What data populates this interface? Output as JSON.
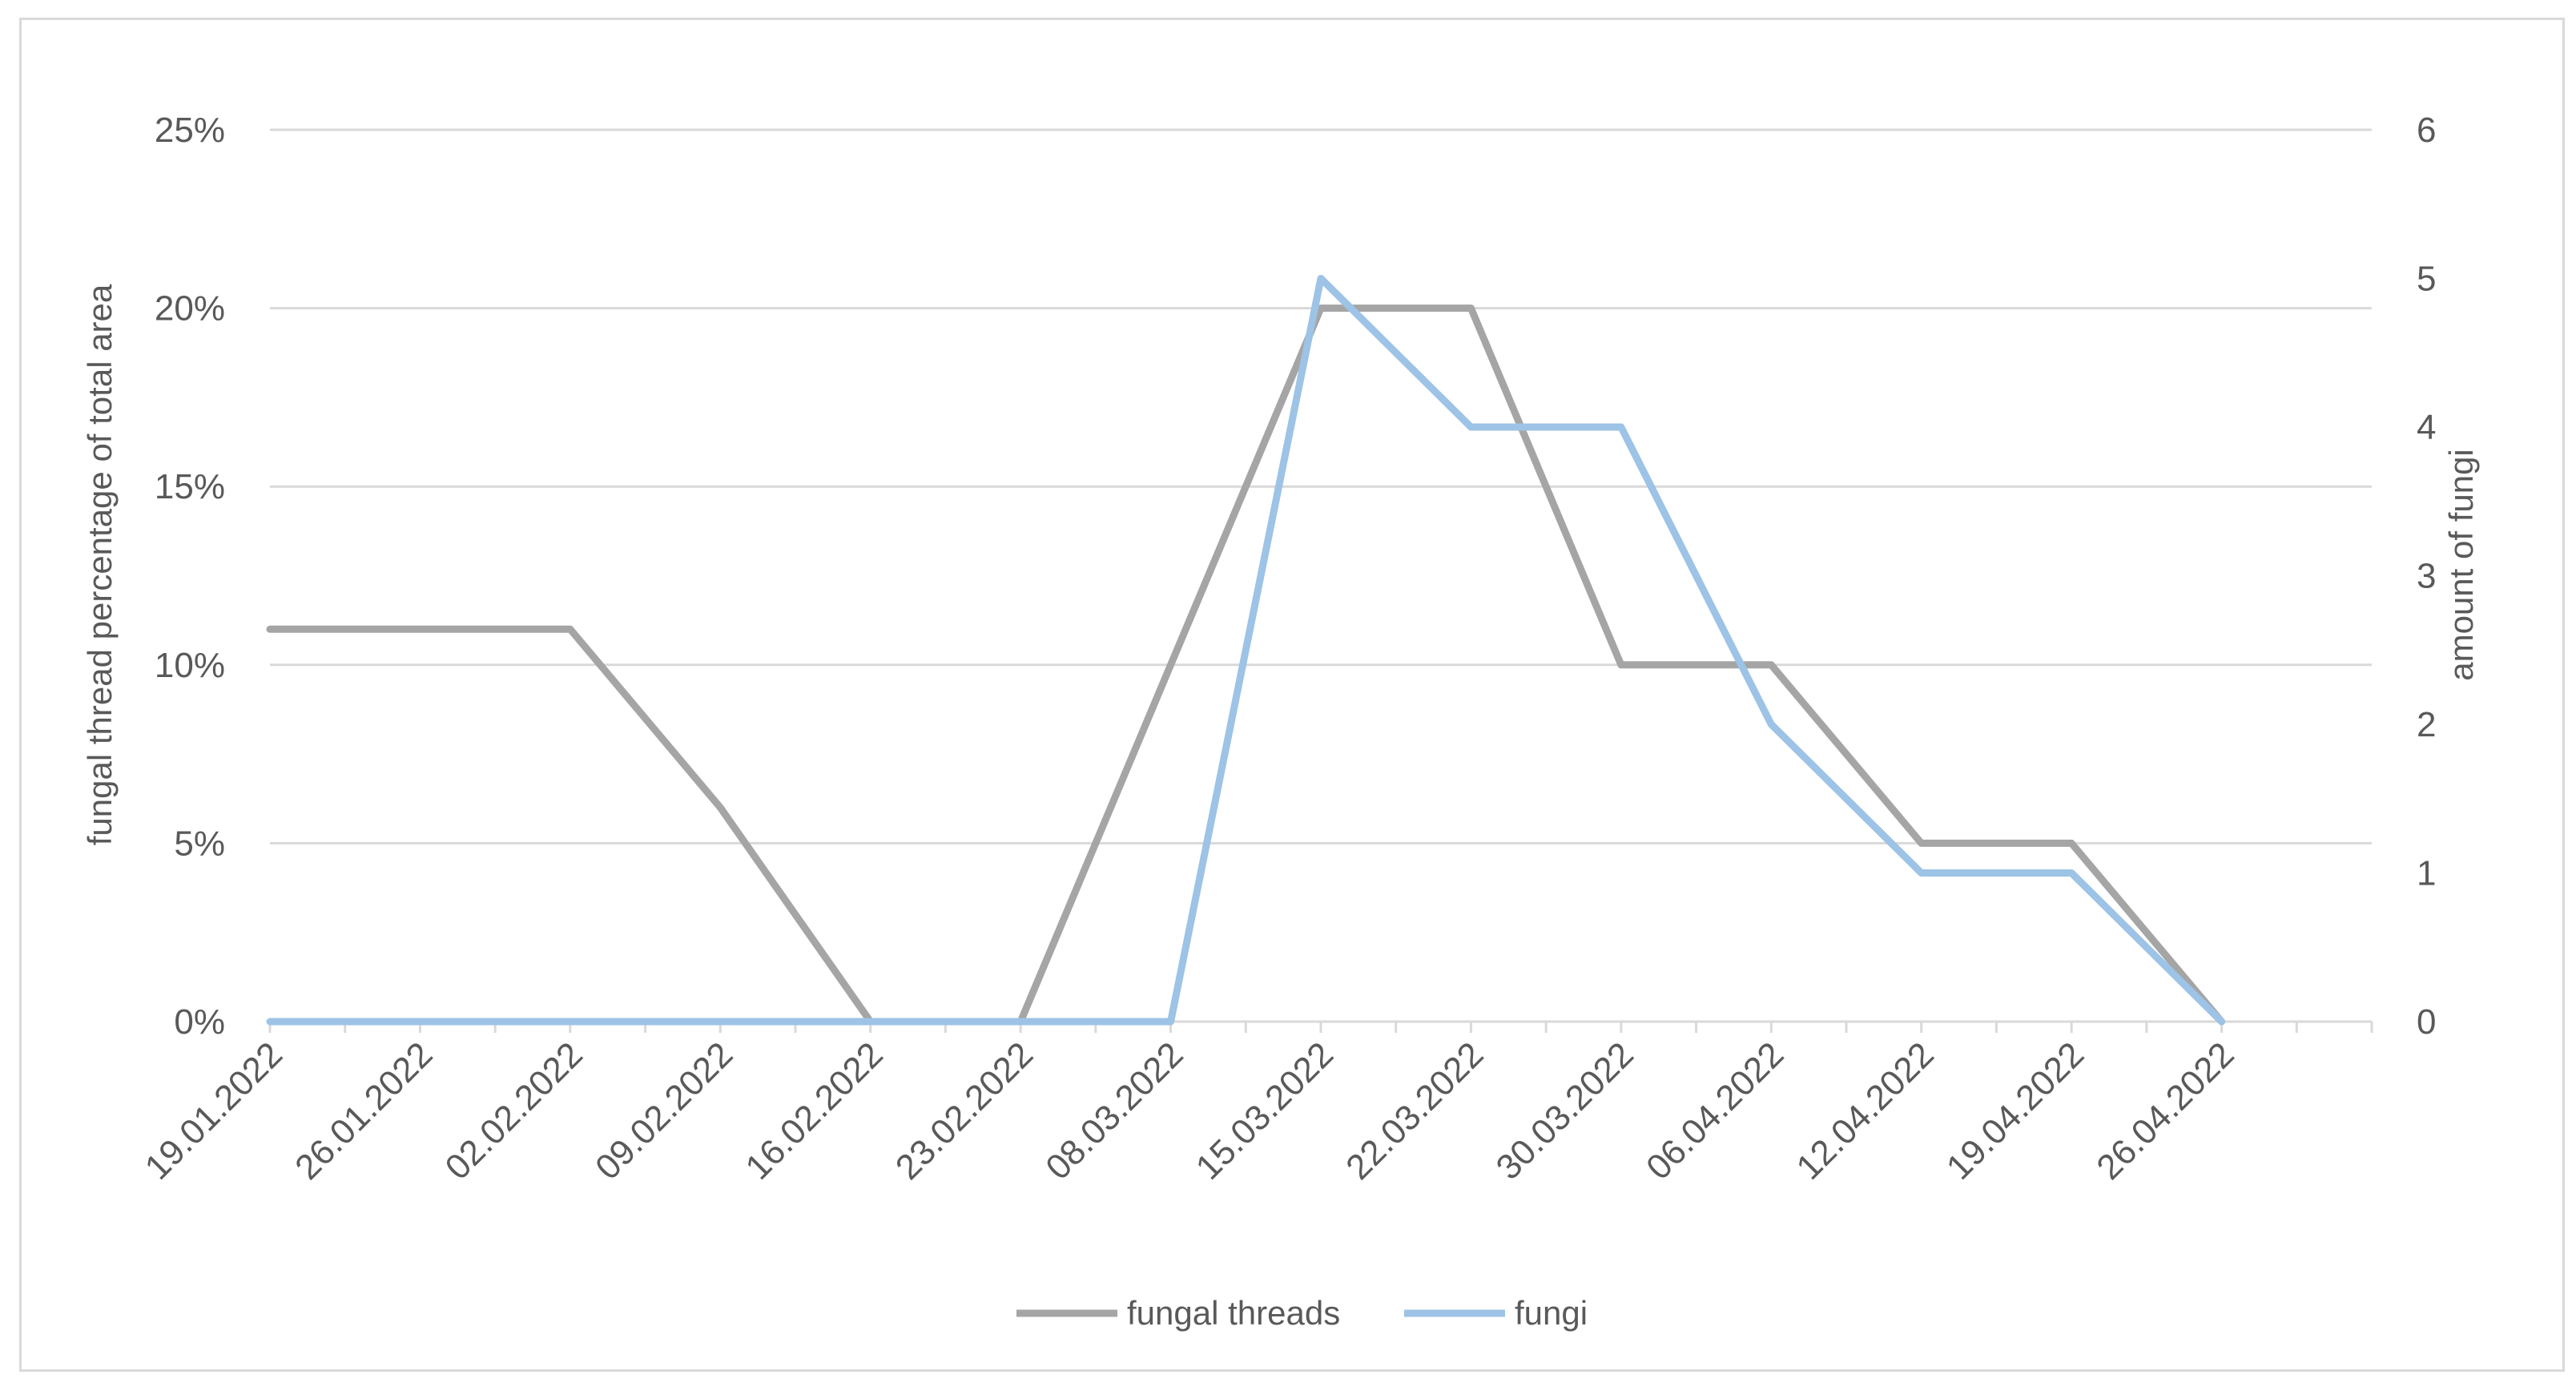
{
  "chart_data": {
    "type": "line",
    "categories": [
      "19.01.2022",
      "26.01.2022",
      "02.02.2022",
      "09.02.2022",
      "16.02.2022",
      "23.02.2022",
      "08.03.2022",
      "15.03.2022",
      "22.03.2022",
      "30.03.2022",
      "06.04.2022",
      "12.04.2022",
      "19.04.2022",
      "26.04.2022"
    ],
    "series": [
      {
        "name": "fungal threads",
        "axis": "left",
        "color": "#a5a5a5",
        "values": [
          0.11,
          0.11,
          0.11,
          0.06,
          0,
          0,
          0.1,
          0.2,
          0.2,
          0.1,
          0.1,
          0.05,
          0.05,
          0
        ]
      },
      {
        "name": "fungi",
        "axis": "right",
        "color": "#9dc3e6",
        "values": [
          0,
          0,
          0,
          0,
          0,
          0,
          0,
          5,
          4,
          4,
          2,
          1,
          1,
          0
        ]
      }
    ],
    "ylabel": "fungal thread percentage of total area",
    "y2label": "amount of fungi",
    "ylim": [
      0,
      0.25
    ],
    "y2lim": [
      0,
      6
    ],
    "yticks": [
      "0%",
      "5%",
      "10%",
      "15%",
      "20%",
      "25%"
    ],
    "y2ticks": [
      "0",
      "1",
      "2",
      "3",
      "4",
      "5",
      "6"
    ],
    "grid": true,
    "legend": "bottom"
  }
}
